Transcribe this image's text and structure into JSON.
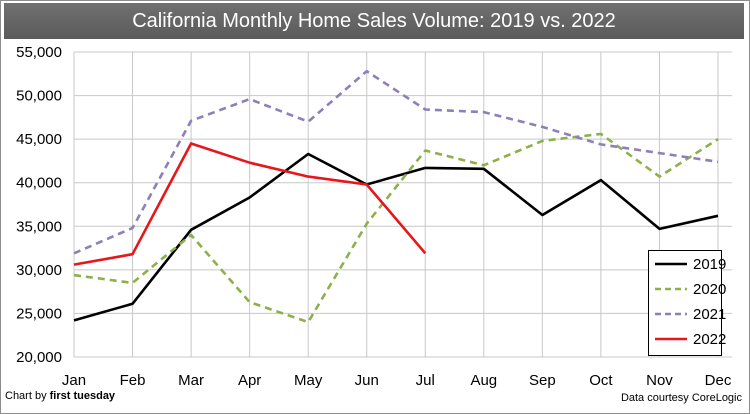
{
  "title": "California Monthly Home Sales Volume: 2019 vs. 2022",
  "credit_left_prefix": "Chart by ",
  "credit_left_brand": "first tuesday",
  "credit_right": "Data courtesy CoreLogic",
  "colors": {
    "2019": "#000000",
    "2020": "#8db04a",
    "2021": "#8f7fb8",
    "2022": "#e8161b"
  },
  "chart_data": {
    "type": "line",
    "title": "California Monthly Home Sales Volume: 2019 vs. 2022",
    "categories": [
      "Jan",
      "Feb",
      "Mar",
      "Apr",
      "May",
      "Jun",
      "Jul",
      "Aug",
      "Sep",
      "Oct",
      "Nov",
      "Dec"
    ],
    "y_ticks": [
      "20,000",
      "25,000",
      "30,000",
      "35,000",
      "40,000",
      "45,000",
      "50,000",
      "55,000"
    ],
    "ylim": [
      20000,
      55000
    ],
    "grid": true,
    "legend_position": "bottom-right",
    "series": [
      {
        "name": "2019",
        "style": "solid",
        "values": [
          24200,
          26100,
          34600,
          38300,
          43300,
          39800,
          41700,
          41600,
          36300,
          40300,
          34700,
          36200
        ]
      },
      {
        "name": "2020",
        "style": "dashed",
        "values": [
          29400,
          28500,
          34000,
          26300,
          24000,
          35300,
          43700,
          42000,
          44800,
          45600,
          40700,
          45000
        ]
      },
      {
        "name": "2021",
        "style": "dashed",
        "values": [
          31900,
          34800,
          47100,
          49600,
          47000,
          52800,
          48400,
          48100,
          46400,
          44400,
          43400,
          42400
        ]
      },
      {
        "name": "2022",
        "style": "solid",
        "values": [
          30600,
          31800,
          44500,
          42300,
          40700,
          39800,
          31900,
          null,
          null,
          null,
          null,
          null
        ]
      }
    ]
  }
}
